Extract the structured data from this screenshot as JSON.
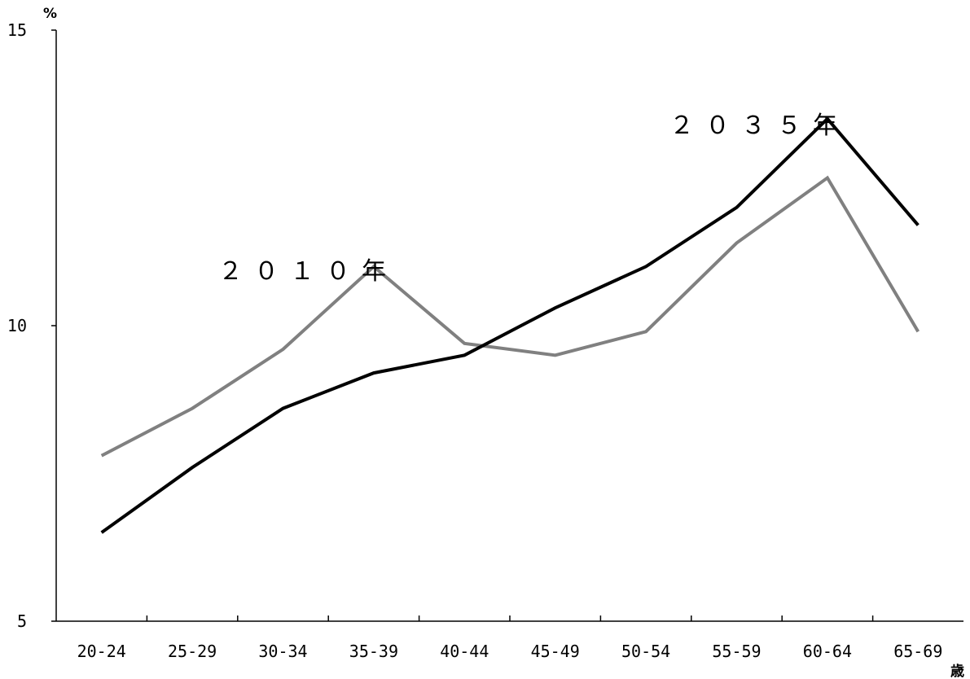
{
  "chart_data": {
    "type": "line",
    "title": "",
    "xlabel": "",
    "ylabel": "",
    "y_unit_label": "%",
    "x_unit_label": "歳",
    "categories": [
      "20-24",
      "25-29",
      "30-34",
      "35-39",
      "40-44",
      "45-49",
      "50-54",
      "55-59",
      "60-64",
      "65-69"
    ],
    "ylim": [
      5,
      15
    ],
    "y_ticks": [
      "5",
      "10",
      "15"
    ],
    "grid": false,
    "legend": "none (series labelled inline on the chart)",
    "series": [
      {
        "name": "２０１０年",
        "color": "#808080",
        "values": [
          7.8,
          8.6,
          9.6,
          11.0,
          9.7,
          9.5,
          9.9,
          11.4,
          12.5,
          9.9
        ]
      },
      {
        "name": "２０３５年",
        "color": "#000000",
        "values": [
          6.5,
          7.6,
          8.6,
          9.2,
          9.5,
          10.3,
          11.0,
          12.0,
          13.5,
          11.7
        ]
      }
    ]
  }
}
